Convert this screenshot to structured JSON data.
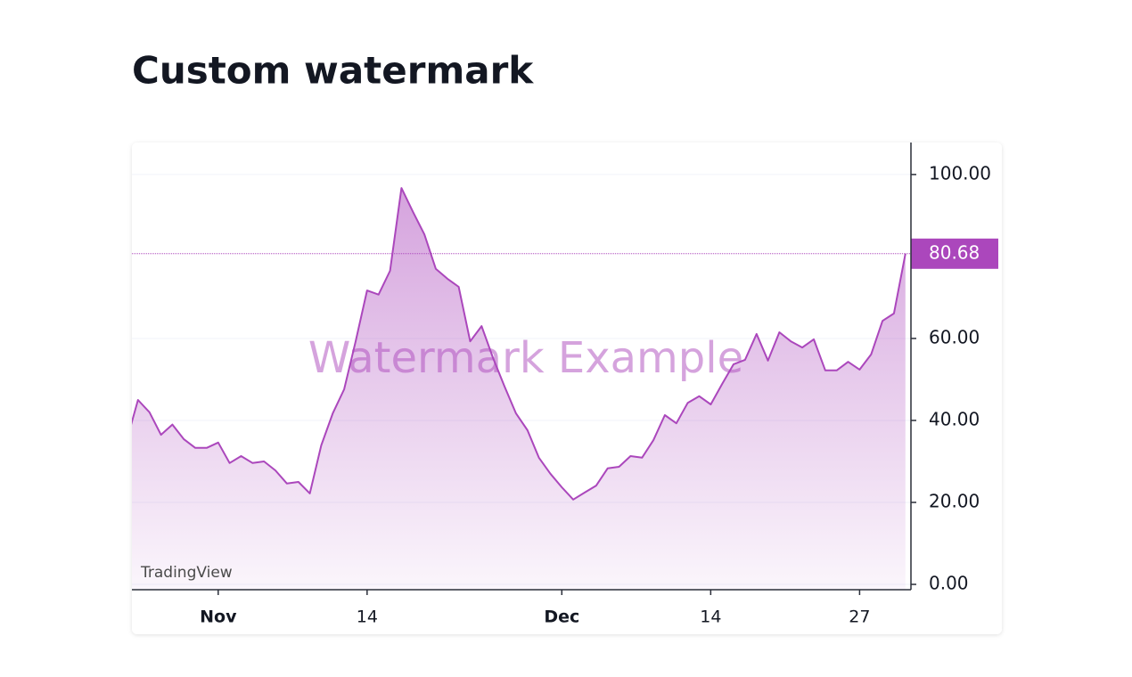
{
  "chart_data": {
    "type": "area",
    "title": "Custom watermark",
    "watermark": "Watermark Example",
    "attribution": "TradingView",
    "color": "#ab47bc",
    "categories": [
      null,
      null,
      null,
      null,
      null,
      null,
      null,
      null,
      "Nov",
      null,
      null,
      null,
      null,
      null,
      null,
      null,
      null,
      null,
      null,
      null,
      null,
      "14",
      null,
      null,
      null,
      null,
      null,
      null,
      null,
      null,
      null,
      null,
      null,
      null,
      null,
      null,
      null,
      null,
      "Dec",
      null,
      null,
      null,
      null,
      null,
      null,
      null,
      null,
      null,
      null,
      null,
      null,
      "14",
      null,
      null,
      null,
      null,
      null,
      null,
      null,
      null,
      null,
      null,
      null,
      null,
      "27",
      null,
      null,
      null,
      null
    ],
    "values": [
      35,
      45,
      42,
      36.5,
      39,
      35.4,
      33.3,
      33.3,
      34.6,
      29.6,
      31.3,
      29.6,
      30,
      27.8,
      24.6,
      25,
      22.2,
      33.9,
      41.7,
      47.6,
      59.3,
      71.7,
      70.7,
      76.5,
      96.7,
      90.9,
      85.4,
      77,
      74.6,
      72.6,
      59.3,
      63,
      55.2,
      48.3,
      41.7,
      37.6,
      30.9,
      27,
      23.7,
      20.7,
      22.4,
      24.1,
      28.3,
      28.7,
      31.3,
      30.9,
      35.2,
      41.3,
      39.3,
      44.3,
      45.9,
      43.9,
      48.9,
      53.7,
      54.8,
      61.1,
      54.6,
      61.5,
      59.3,
      57.8,
      59.8,
      52.2,
      52.2,
      54.3,
      52.4,
      56.1,
      64.3,
      66.1,
      80.68
    ],
    "ylim": [
      -1.3,
      107.8
    ],
    "yticks": [
      {
        "value": 0,
        "label": "0.00"
      },
      {
        "value": 20,
        "label": "20.00"
      },
      {
        "value": 40,
        "label": "40.00"
      },
      {
        "value": 60,
        "label": "60.00"
      },
      {
        "value": 100,
        "label": "100.00"
      }
    ],
    "grid": true
  }
}
